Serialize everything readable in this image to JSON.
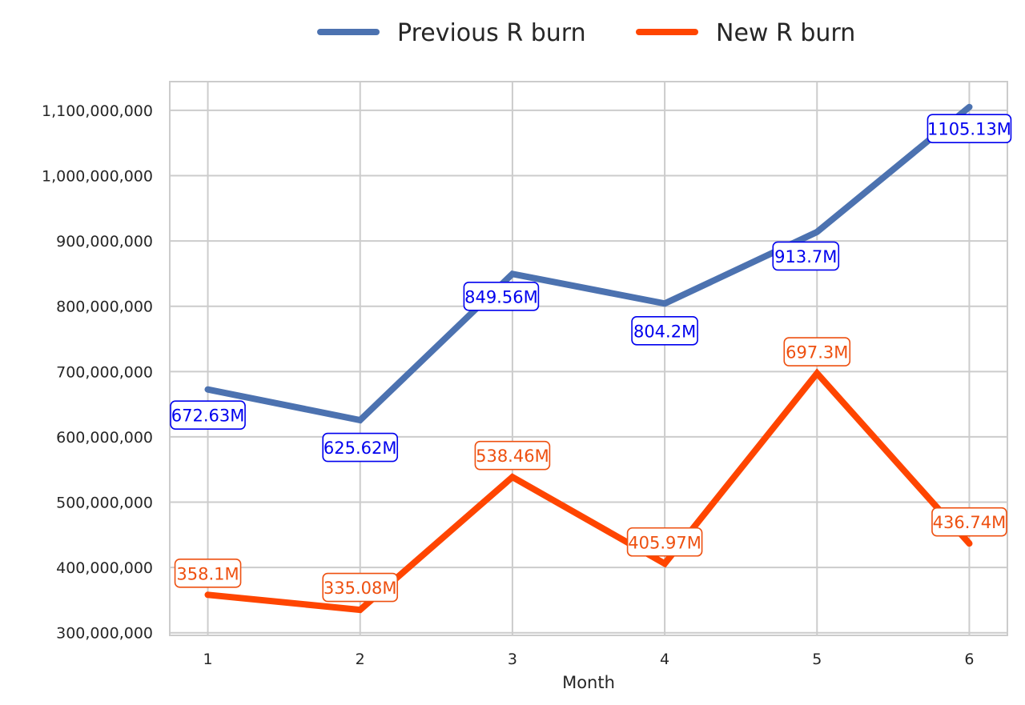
{
  "chart_data": {
    "type": "line",
    "title": "",
    "xlabel": "Month",
    "ylabel": "",
    "x": [
      1,
      2,
      3,
      4,
      5,
      6
    ],
    "xlim": [
      0.75,
      6.25
    ],
    "ylim": [
      296000000,
      1144000000
    ],
    "yticks": [
      300000000,
      400000000,
      500000000,
      600000000,
      700000000,
      800000000,
      900000000,
      1000000000,
      1100000000
    ],
    "ytick_labels": [
      "300,000,000",
      "400,000,000",
      "500,000,000",
      "600,000,000",
      "700,000,000",
      "800,000,000",
      "900,000,000",
      "1,000,000,000",
      "1,100,000,000"
    ],
    "xtick_labels": [
      "1",
      "2",
      "3",
      "4",
      "5",
      "6"
    ],
    "grid": true,
    "legend_position": "top-center",
    "series": [
      {
        "name": "Previous R burn",
        "color": "#4c72b0",
        "label_color": "#0000ee",
        "values": [
          672630000,
          625620000,
          849560000,
          804200000,
          913700000,
          1105130000
        ],
        "labels": [
          "672.63M",
          "625.62M",
          "849.56M",
          "804.2M",
          "913.7M",
          "1105.13M"
        ]
      },
      {
        "name": "New R burn",
        "color": "#ff4500",
        "label_color": "#ee5010",
        "values": [
          358100000,
          335080000,
          538460000,
          405970000,
          697300000,
          436740000
        ],
        "labels": [
          "358.1M",
          "335.08M",
          "538.46M",
          "405.97M",
          "697.3M",
          "436.74M"
        ]
      }
    ]
  }
}
